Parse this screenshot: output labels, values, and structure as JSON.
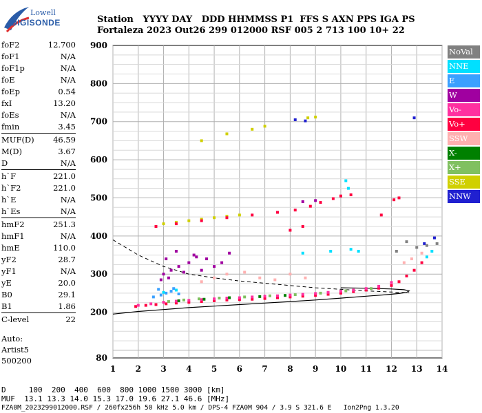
{
  "logo": {
    "line1": "Lowell",
    "line2": "DIGISONDE"
  },
  "header": {
    "row1": [
      "Station",
      "YYYY",
      "DAY",
      "DDD",
      "HHMMSS",
      "P1",
      "FFS",
      "S",
      "AXN",
      "PPS",
      "IGA",
      "PS"
    ],
    "row2": [
      "Fortaleza",
      "2023",
      "Out26",
      "299",
      "012000",
      "RSF",
      "005",
      "2",
      "713",
      "100",
      "10+",
      "22"
    ]
  },
  "params": [
    [
      {
        "k": "foF2",
        "v": "12.700"
      },
      {
        "k": "foF1",
        "v": "N/A"
      },
      {
        "k": "foF1p",
        "v": "N/A"
      },
      {
        "k": "foE",
        "v": "N/A"
      },
      {
        "k": "foEp",
        "v": "0.54"
      },
      {
        "k": "fxI",
        "v": "13.20"
      },
      {
        "k": "foEs",
        "v": "N/A"
      },
      {
        "k": "fmin",
        "v": "3.45"
      }
    ],
    [
      {
        "k": "MUF(D)",
        "v": "46.59"
      },
      {
        "k": "M(D)",
        "v": "3.67"
      },
      {
        "k": "D",
        "v": "N/A"
      }
    ],
    [
      {
        "k": "h`F",
        "v": "221.0"
      },
      {
        "k": "h`F2",
        "v": "221.0"
      },
      {
        "k": "h`E",
        "v": "N/A"
      },
      {
        "k": "h`Es",
        "v": "N/A"
      }
    ],
    [
      {
        "k": "hmF2",
        "v": "251.3"
      },
      {
        "k": "hmF1",
        "v": "N/A"
      },
      {
        "k": "hmE",
        "v": "110.0"
      },
      {
        "k": "yF2",
        "v": "28.7"
      },
      {
        "k": "yF1",
        "v": "N/A"
      },
      {
        "k": "yE",
        "v": "20.0"
      },
      {
        "k": "B0",
        "v": "29.1"
      },
      {
        "k": "B1",
        "v": "1.86"
      }
    ],
    [
      {
        "k": "C-level",
        "v": "22"
      }
    ]
  ],
  "auto": [
    "Auto:",
    "Artist5",
    "500200"
  ],
  "legend": [
    {
      "label": "NoVal",
      "color": "#808080"
    },
    {
      "label": "NNE",
      "color": "#00e0ff"
    },
    {
      "label": "E",
      "color": "#3aa0ff"
    },
    {
      "label": "W",
      "color": "#a000a0"
    },
    {
      "label": "Vo-",
      "color": "#ff30a0"
    },
    {
      "label": "Vo+",
      "color": "#ff0040"
    },
    {
      "label": "SSW",
      "color": "#ffb0b0"
    },
    {
      "label": "X-",
      "color": "#008000"
    },
    {
      "label": "X+",
      "color": "#80c060"
    },
    {
      "label": "SSE",
      "color": "#d0d000"
    },
    {
      "label": "NNW",
      "color": "#2020d0"
    }
  ],
  "footer": {
    "d_row": "D     100  200  400  600  800 1000 1500 3000 [km]",
    "muf_row": "MUF  13.1 13.3 14.0 15.3 17.0 19.6 27.1 46.6 [MHz]",
    "file_row": "FZA0M_2023299012000.RSF / 260fx256h 50 kHz 5.0 km / DPS-4 FZA0M 904 / 3.9 S 321.6 E   Ion2Png 1.3.20"
  },
  "chart_data": {
    "type": "scatter",
    "xlim": [
      1,
      14
    ],
    "ylim": [
      80,
      900
    ],
    "x_ticks": [
      1,
      2,
      3,
      4,
      5,
      6,
      7,
      8,
      9,
      10,
      11,
      12,
      13,
      14
    ],
    "y_ticks": [
      80,
      200,
      300,
      400,
      500,
      600,
      700,
      800,
      900
    ],
    "grid": true,
    "series": [
      {
        "name": "Vo+",
        "color": "#ff0040",
        "points": [
          [
            1.9,
            215
          ],
          [
            2.3,
            218
          ],
          [
            2.7,
            220
          ],
          [
            3.1,
            222
          ],
          [
            3.5,
            224
          ],
          [
            4.0,
            226
          ],
          [
            4.5,
            228
          ],
          [
            5.0,
            230
          ],
          [
            5.5,
            232
          ],
          [
            6.0,
            233
          ],
          [
            6.5,
            234
          ],
          [
            7.0,
            236
          ],
          [
            7.5,
            238
          ],
          [
            8.0,
            240
          ],
          [
            8.5,
            242
          ],
          [
            9.0,
            244
          ],
          [
            9.5,
            247
          ],
          [
            10.0,
            250
          ],
          [
            10.5,
            254
          ],
          [
            11.0,
            258
          ],
          [
            11.5,
            263
          ],
          [
            12.0,
            270
          ],
          [
            12.3,
            280
          ],
          [
            12.6,
            295
          ],
          [
            12.9,
            310
          ],
          [
            13.2,
            330
          ]
        ]
      },
      {
        "name": "Vo-",
        "color": "#ff30a0",
        "points": [
          [
            2.0,
            218
          ],
          [
            2.5,
            222
          ],
          [
            3.0,
            226
          ],
          [
            3.5,
            229
          ],
          [
            4.0,
            231
          ],
          [
            4.5,
            233
          ],
          [
            5.0,
            235
          ],
          [
            5.5,
            237
          ],
          [
            6.0,
            238
          ],
          [
            6.5,
            240
          ],
          [
            7.0,
            242
          ],
          [
            7.5,
            243
          ],
          [
            8.0,
            245
          ],
          [
            8.5,
            247
          ],
          [
            9.0,
            249
          ],
          [
            9.5,
            252
          ],
          [
            10.0,
            255
          ],
          [
            10.5,
            258
          ],
          [
            11.0,
            262
          ],
          [
            11.5,
            268
          ],
          [
            12.0,
            278
          ]
        ]
      },
      {
        "name": "X+",
        "color": "#80c060",
        "points": [
          [
            3.2,
            228
          ],
          [
            3.8,
            232
          ],
          [
            4.4,
            235
          ],
          [
            5.2,
            237
          ],
          [
            6.2,
            240
          ],
          [
            7.2,
            243
          ],
          [
            8.2,
            246
          ],
          [
            9.2,
            250
          ],
          [
            10.2,
            256
          ],
          [
            11.2,
            262
          ]
        ]
      },
      {
        "name": "X-",
        "color": "#008000",
        "points": [
          [
            3.6,
            230
          ],
          [
            4.6,
            234
          ],
          [
            5.6,
            238
          ],
          [
            6.8,
            241
          ],
          [
            7.8,
            244
          ]
        ]
      },
      {
        "name": "E",
        "color": "#3aa0ff",
        "points": [
          [
            2.6,
            240
          ],
          [
            2.9,
            245
          ],
          [
            3.1,
            250
          ],
          [
            3.3,
            255
          ],
          [
            3.6,
            248
          ],
          [
            2.8,
            260
          ],
          [
            3.4,
            262
          ]
        ]
      },
      {
        "name": "NNE",
        "color": "#00e0ff",
        "points": [
          [
            3.0,
            252
          ],
          [
            3.5,
            258
          ],
          [
            13.4,
            345
          ],
          [
            13.6,
            360
          ],
          [
            10.4,
            365
          ],
          [
            10.7,
            360
          ],
          [
            9.6,
            360
          ],
          [
            8.5,
            355
          ],
          [
            10.3,
            525
          ],
          [
            10.2,
            545
          ]
        ]
      },
      {
        "name": "W",
        "color": "#a000a0",
        "points": [
          [
            3.0,
            300
          ],
          [
            3.3,
            310
          ],
          [
            3.6,
            320
          ],
          [
            4.0,
            330
          ],
          [
            4.3,
            345
          ],
          [
            3.2,
            290
          ],
          [
            2.9,
            285
          ],
          [
            3.8,
            305
          ],
          [
            4.5,
            310
          ],
          [
            5.0,
            320
          ],
          [
            5.3,
            330
          ],
          [
            5.6,
            355
          ],
          [
            3.5,
            360
          ],
          [
            4.2,
            350
          ],
          [
            3.1,
            340
          ],
          [
            4.7,
            340
          ],
          [
            8.5,
            490
          ],
          [
            9.0,
            493
          ]
        ]
      },
      {
        "name": "SSW",
        "color": "#ffb0b0",
        "points": [
          [
            4.5,
            280
          ],
          [
            5.0,
            290
          ],
          [
            5.5,
            300
          ],
          [
            6.2,
            305
          ],
          [
            6.8,
            290
          ],
          [
            7.4,
            285
          ],
          [
            8.0,
            300
          ],
          [
            8.6,
            290
          ],
          [
            12.5,
            330
          ],
          [
            12.8,
            340
          ],
          [
            13.2,
            355
          ]
        ]
      },
      {
        "name": "SSE",
        "color": "#d0d000",
        "points": [
          [
            3.0,
            432
          ],
          [
            3.5,
            436
          ],
          [
            4.0,
            440
          ],
          [
            4.5,
            444
          ],
          [
            5.0,
            448
          ],
          [
            5.5,
            452
          ],
          [
            6.0,
            455
          ],
          [
            4.5,
            650
          ],
          [
            5.5,
            668
          ],
          [
            6.5,
            680
          ],
          [
            7.0,
            688
          ],
          [
            9.0,
            712
          ],
          [
            8.7,
            710
          ]
        ]
      },
      {
        "name": "NNW",
        "color": "#2020d0",
        "points": [
          [
            8.2,
            705
          ],
          [
            8.6,
            702
          ],
          [
            12.9,
            710
          ],
          [
            13.3,
            380
          ],
          [
            13.7,
            395
          ]
        ]
      },
      {
        "name": "NoVal",
        "color": "#808080",
        "points": [
          [
            13.0,
            370
          ],
          [
            13.4,
            375
          ],
          [
            13.8,
            380
          ],
          [
            12.2,
            360
          ],
          [
            12.6,
            385
          ]
        ]
      },
      {
        "name": "F-trace-Vo+",
        "color": "#ff0040",
        "points": [
          [
            2.7,
            425
          ],
          [
            3.5,
            432
          ],
          [
            4.5,
            440
          ],
          [
            5.5,
            448
          ],
          [
            6.5,
            455
          ],
          [
            7.5,
            462
          ],
          [
            8.2,
            468
          ],
          [
            8.8,
            478
          ],
          [
            9.2,
            488
          ],
          [
            9.7,
            498
          ],
          [
            10.0,
            505
          ],
          [
            10.4,
            508
          ],
          [
            12.1,
            495
          ],
          [
            12.3,
            500
          ],
          [
            8.0,
            415
          ],
          [
            8.5,
            425
          ],
          [
            11.6,
            455
          ]
        ]
      }
    ],
    "profile_solid": [
      [
        1,
        195
      ],
      [
        2,
        202
      ],
      [
        3,
        207
      ],
      [
        4,
        212
      ],
      [
        5,
        216
      ],
      [
        6,
        220
      ],
      [
        7,
        224
      ],
      [
        8,
        228
      ],
      [
        9,
        232
      ],
      [
        10,
        237
      ],
      [
        11,
        242
      ],
      [
        11.8,
        246
      ],
      [
        12.3,
        249
      ],
      [
        12.6,
        252
      ],
      [
        12.7,
        256
      ],
      [
        12.5,
        259
      ],
      [
        12.0,
        261
      ],
      [
        11.0,
        263
      ],
      [
        10.0,
        264
      ]
    ],
    "profile_dashed": [
      [
        1,
        390
      ],
      [
        1.5,
        370
      ],
      [
        2,
        350
      ],
      [
        3,
        320
      ],
      [
        4,
        300
      ],
      [
        5,
        290
      ],
      [
        6,
        282
      ],
      [
        7,
        276
      ],
      [
        8,
        270
      ],
      [
        9,
        264
      ],
      [
        10,
        260
      ],
      [
        11,
        256
      ],
      [
        12,
        253
      ],
      [
        12.7,
        251
      ]
    ]
  }
}
